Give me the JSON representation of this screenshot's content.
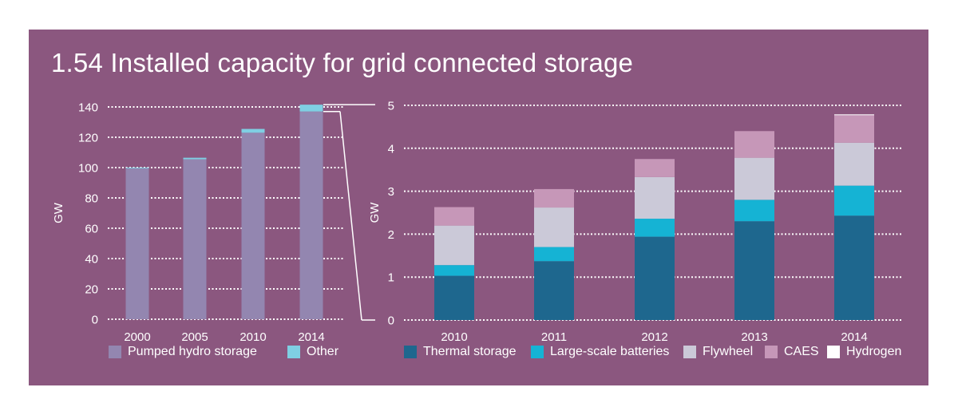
{
  "colors": {
    "panel": "#8b577f",
    "pumped": "#9386b0",
    "other": "#7fcfe3",
    "thermal": "#1e678e",
    "batteries": "#15b3d4",
    "flywheel": "#cbc9d8",
    "caes": "#c697b8",
    "hydrogen": "#ffffff",
    "text": "#ffffff"
  },
  "title": "1.54 Installed capacity for grid connected storage",
  "chart_data": [
    {
      "type": "bar",
      "stacked": true,
      "categories": [
        "2000",
        "2005",
        "2010",
        "2014"
      ],
      "series": [
        {
          "name": "Pumped hydro storage",
          "color_key": "pumped",
          "values": [
            99.5,
            105.5,
            123,
            137
          ]
        },
        {
          "name": "Other",
          "color_key": "other",
          "values": [
            0.5,
            1,
            2.5,
            4.5
          ]
        }
      ],
      "ylabel": "GW",
      "ylim": [
        0,
        140
      ],
      "yticks": [
        "0",
        "20",
        "40",
        "60",
        "80",
        "100",
        "120",
        "140"
      ],
      "grid": true,
      "legend": "bottom"
    },
    {
      "type": "bar",
      "stacked": true,
      "categories": [
        "2010",
        "2011",
        "2012",
        "2013",
        "2014"
      ],
      "series": [
        {
          "name": "Thermal storage",
          "color_key": "thermal",
          "values": [
            1.03,
            1.37,
            1.94,
            2.3,
            2.43
          ]
        },
        {
          "name": "Large-scale batteries",
          "color_key": "batteries",
          "values": [
            0.25,
            0.33,
            0.42,
            0.5,
            0.7
          ]
        },
        {
          "name": "Flywheel",
          "color_key": "flywheel",
          "values": [
            0.92,
            0.92,
            0.97,
            0.98,
            1.0
          ]
        },
        {
          "name": "CAES",
          "color_key": "caes",
          "values": [
            0.43,
            0.43,
            0.42,
            0.62,
            0.64
          ]
        },
        {
          "name": "Hydrogen",
          "color_key": "hydrogen",
          "values": [
            0.0,
            0.0,
            0.0,
            0.0,
            0.02
          ]
        }
      ],
      "ylabel": "GW",
      "ylim": [
        0,
        5
      ],
      "yticks": [
        "0",
        "1",
        "2",
        "3",
        "4",
        "5"
      ],
      "grid": true,
      "legend": "bottom"
    }
  ]
}
